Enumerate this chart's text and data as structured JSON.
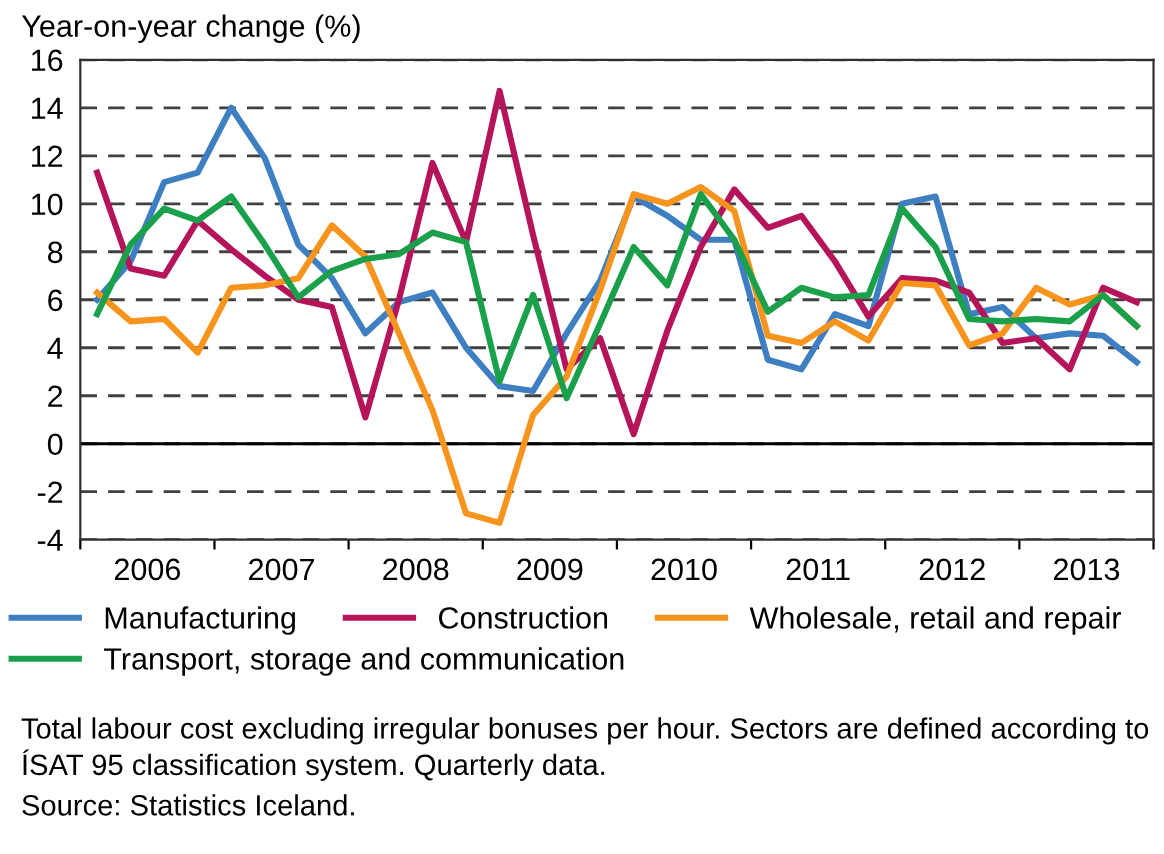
{
  "chart_data": {
    "type": "line",
    "ylabel": "Year-on-year change (%)",
    "x": [
      2006.125,
      2006.375,
      2006.625,
      2006.875,
      2007.125,
      2007.375,
      2007.625,
      2007.875,
      2008.125,
      2008.375,
      2008.625,
      2008.875,
      2009.125,
      2009.375,
      2009.625,
      2009.875,
      2010.125,
      2010.375,
      2010.625,
      2010.875,
      2011.125,
      2011.375,
      2011.625,
      2011.875,
      2012.125,
      2012.375,
      2012.625,
      2012.875,
      2013.125,
      2013.375,
      2013.625,
      2013.875
    ],
    "xlim": [
      2006,
      2014
    ],
    "xticks": [
      {
        "value": 2006,
        "label": null
      },
      {
        "value": 2006.5,
        "label": "2006"
      },
      {
        "value": 2007,
        "label": null
      },
      {
        "value": 2007.5,
        "label": "2007"
      },
      {
        "value": 2008,
        "label": null
      },
      {
        "value": 2008.5,
        "label": "2008"
      },
      {
        "value": 2009,
        "label": null
      },
      {
        "value": 2009.5,
        "label": "2009"
      },
      {
        "value": 2010,
        "label": null
      },
      {
        "value": 2010.5,
        "label": "2010"
      },
      {
        "value": 2011,
        "label": null
      },
      {
        "value": 2011.5,
        "label": "2011"
      },
      {
        "value": 2012,
        "label": null
      },
      {
        "value": 2012.5,
        "label": "2012"
      },
      {
        "value": 2013,
        "label": null
      },
      {
        "value": 2013.5,
        "label": "2013"
      },
      {
        "value": 2014,
        "label": null
      }
    ],
    "ylim": [
      -4,
      16
    ],
    "yticks": [
      -4,
      -2,
      0,
      2,
      4,
      6,
      8,
      10,
      12,
      14,
      16
    ],
    "grid": "y",
    "legend": "bottom",
    "line_style": "solid",
    "ref_lines": [
      {
        "axis": "y",
        "value": 0,
        "label": null,
        "color": "#000000",
        "line_style": "solid"
      }
    ],
    "series": [
      {
        "name": "Manufacturing",
        "color": "#3d7fc1",
        "values": [
          6.0,
          7.6,
          10.9,
          11.3,
          14.0,
          11.9,
          8.3,
          6.9,
          4.6,
          5.9,
          6.3,
          4.0,
          2.4,
          2.2,
          4.6,
          6.8,
          10.3,
          9.5,
          8.5,
          8.5,
          3.5,
          3.1,
          5.4,
          4.9,
          10.0,
          10.3,
          5.4,
          5.7,
          4.4,
          4.6,
          4.5,
          3.4
        ]
      },
      {
        "name": "Construction",
        "color": "#b5135a",
        "values": [
          11.3,
          7.3,
          7.0,
          9.3,
          8.1,
          7.0,
          6.0,
          5.7,
          1.1,
          6.0,
          11.7,
          8.4,
          14.7,
          8.7,
          3.1,
          4.4,
          0.4,
          4.7,
          8.2,
          10.6,
          9.0,
          9.5,
          7.6,
          5.3,
          6.9,
          6.8,
          6.3,
          4.2,
          4.4,
          3.1,
          6.5,
          5.9
        ]
      },
      {
        "name": "Wholesale, retail and repair",
        "color": "#f7941d",
        "values": [
          6.3,
          5.1,
          5.2,
          3.8,
          6.5,
          6.6,
          6.9,
          9.1,
          7.8,
          4.6,
          1.4,
          -2.9,
          -3.3,
          1.2,
          2.8,
          6.4,
          10.4,
          10.0,
          10.7,
          9.7,
          4.5,
          4.2,
          5.1,
          4.3,
          6.7,
          6.6,
          4.1,
          4.6,
          6.5,
          5.8,
          6.2,
          4.9
        ]
      },
      {
        "name": "Transport, storage and communication",
        "color": "#1aa04a",
        "values": [
          5.4,
          8.3,
          9.8,
          9.3,
          10.3,
          8.3,
          6.1,
          7.2,
          7.7,
          7.9,
          8.8,
          8.4,
          2.6,
          6.2,
          1.9,
          5.0,
          8.2,
          6.6,
          10.4,
          8.5,
          5.5,
          6.5,
          6.1,
          6.2,
          9.8,
          8.2,
          5.2,
          5.1,
          5.2,
          5.1,
          6.2,
          4.9
        ]
      }
    ],
    "annotations": [
      "Total labour cost excluding irregular bonuses per hour. Sectors are defined according to ÍSAT 95 classification system. Quarterly data.",
      "Source: Statistics Iceland."
    ]
  }
}
